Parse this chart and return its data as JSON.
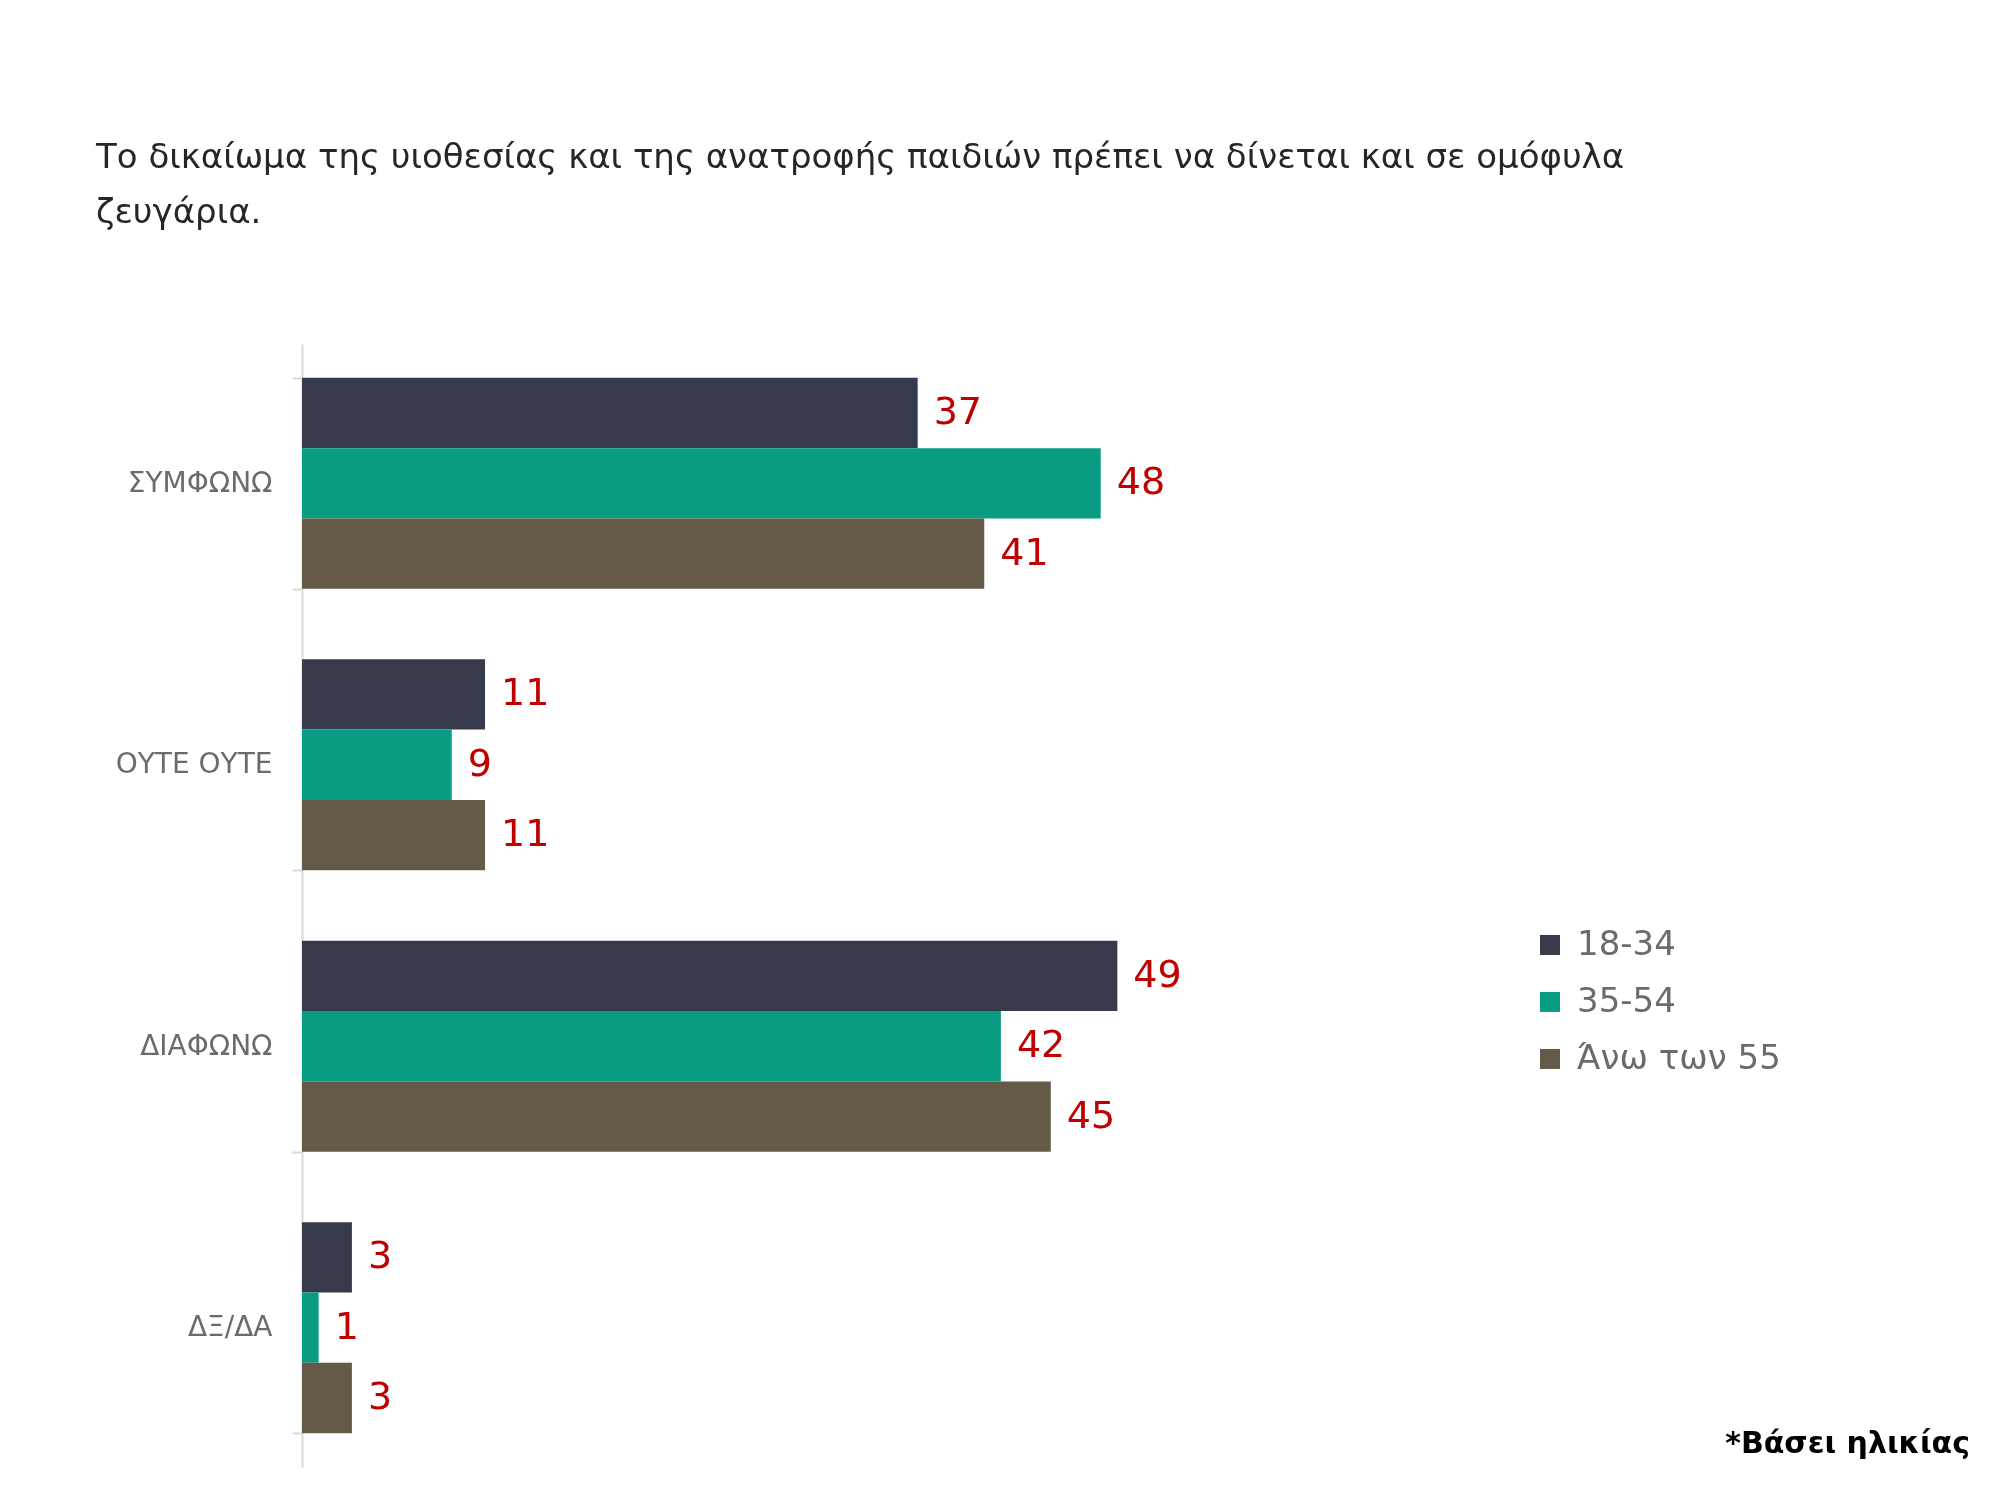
{
  "chart_data": {
    "type": "bar",
    "orientation": "horizontal",
    "title": "Το δικαίωμα της υιοθεσίας και της ανατροφής παιδιών πρέπει να δίνεται και σε ομόφυλα ζευγάρια.",
    "categories": [
      "ΣΥΜΦΩΝΩ",
      "ΟΥΤΕ ΟΥΤΕ",
      "ΔΙΑΦΩΝΩ",
      "ΔΞ/ΔΑ"
    ],
    "series": [
      {
        "name": "18-34",
        "color": "#373a4a",
        "values": [
          37,
          11,
          49,
          3
        ]
      },
      {
        "name": "35-54",
        "color": "#0a9c83",
        "values": [
          48,
          9,
          42,
          1
        ]
      },
      {
        "name": "Άνω των 55",
        "color": "#655a48",
        "values": [
          41,
          11,
          45,
          3
        ]
      }
    ],
    "data_labels": true,
    "legend": "right",
    "grid": false,
    "annotations": [
      "*Βάσει ηλικίας"
    ]
  }
}
